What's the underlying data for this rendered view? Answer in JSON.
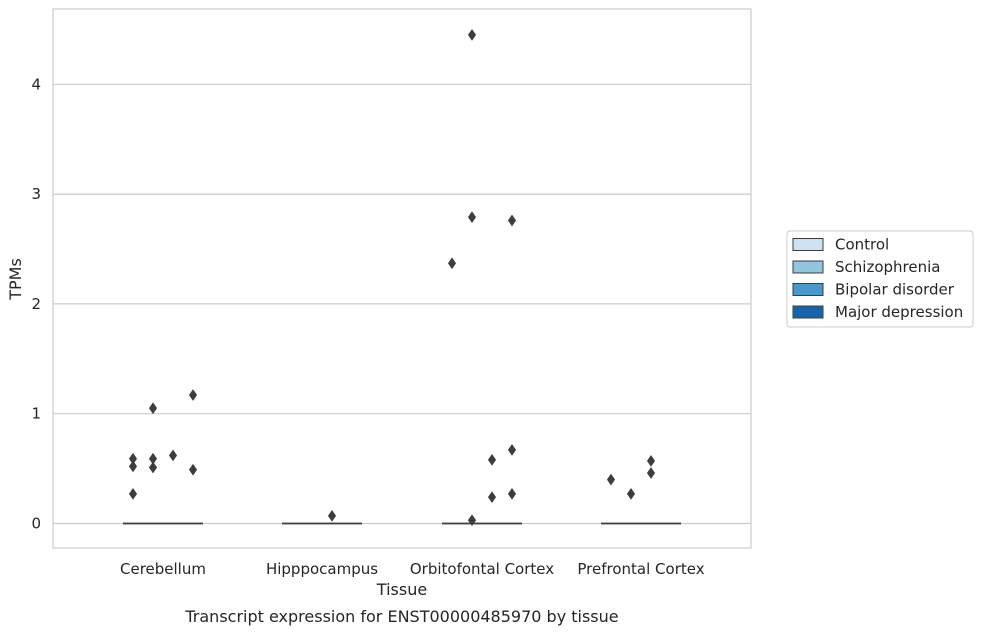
{
  "chart_data": {
    "type": "box",
    "title": "",
    "caption": "Transcript expression for ENST00000485970 by tissue",
    "xlabel": "Tissue",
    "ylabel": "TPMs",
    "categories": [
      "Cerebellum",
      "Hipppocampus",
      "Orbitofontal Cortex",
      "Prefrontal Cortex"
    ],
    "ylim": [
      -0.22,
      4.68
    ],
    "yticks": [
      0,
      1,
      2,
      3,
      4
    ],
    "grid": true,
    "legend_position": "right",
    "series": [
      {
        "name": "Control",
        "color": "#cfe1f2",
        "median": [
          0,
          0,
          0,
          0
        ],
        "outliers": [
          [
            0.59,
            0.52,
            0.27
          ],
          [],
          [
            2.37
          ],
          [
            0.4
          ]
        ]
      },
      {
        "name": "Schizophrenia",
        "color": "#93c4de",
        "median": [
          0,
          0,
          0,
          0
        ],
        "outliers": [
          [
            1.05,
            0.59,
            0.51
          ],
          [],
          [
            4.45,
            2.79,
            0.03
          ],
          [
            0.27
          ]
        ]
      },
      {
        "name": "Bipolar disorder",
        "color": "#4a98c9",
        "median": [
          0,
          0,
          0,
          0
        ],
        "outliers": [
          [
            0.62
          ],
          [
            0.07
          ],
          [
            0.58,
            0.24
          ],
          [
            0.57,
            0.46
          ]
        ]
      },
      {
        "name": "Major depression",
        "color": "#1764ab",
        "median": [
          0,
          0,
          0,
          0
        ],
        "outliers": [
          [
            1.17,
            0.49
          ],
          [],
          [
            2.76,
            0.67,
            0.27
          ],
          []
        ]
      }
    ]
  }
}
